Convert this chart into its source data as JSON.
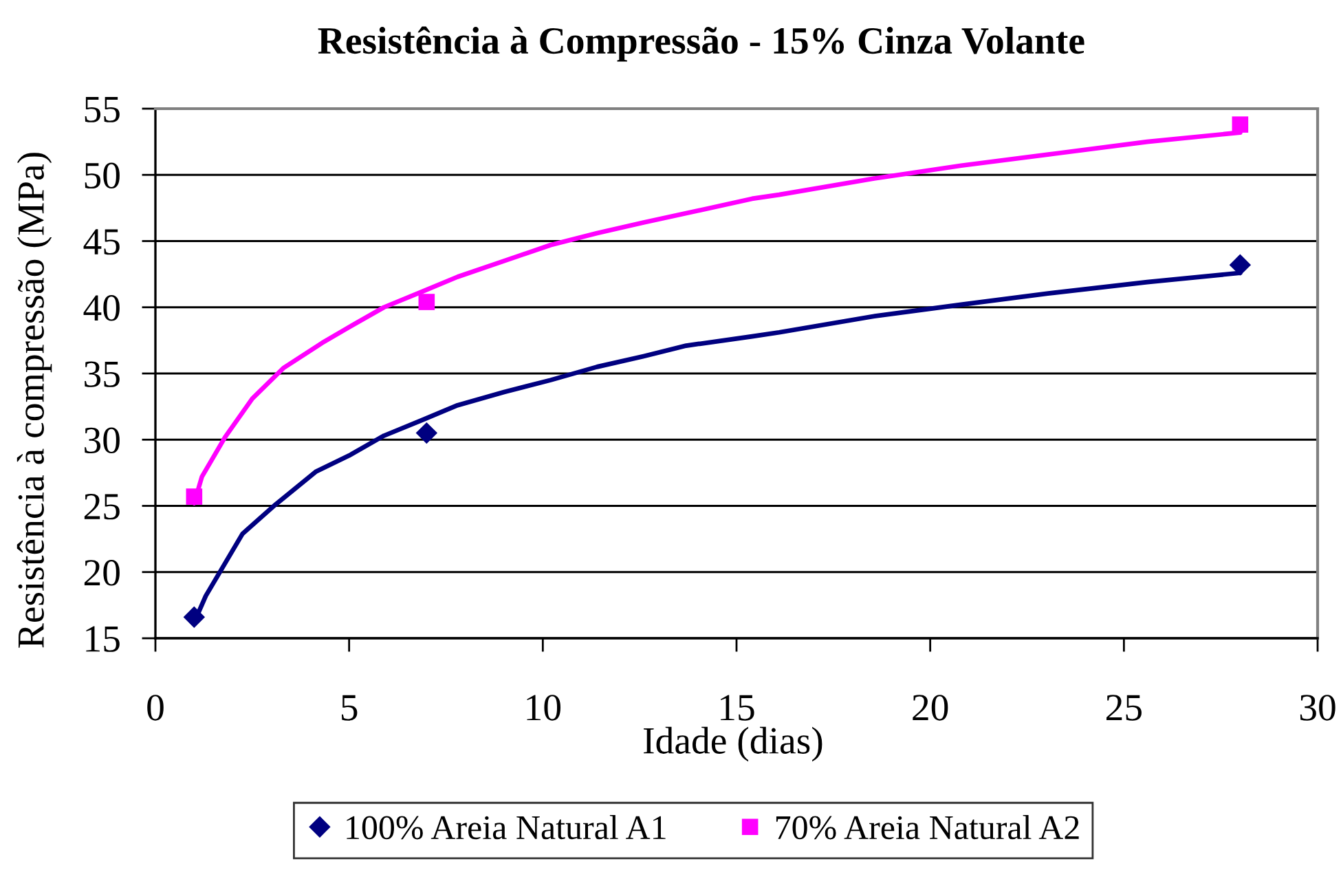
{
  "chart_data": {
    "type": "scatter",
    "title": "Resistência à Compressão - 15% Cinza Volante",
    "xlabel": "Idade (dias)",
    "ylabel": "Resistência à compressão (MPa)",
    "xlim": [
      0,
      30
    ],
    "xticks": [
      0,
      5,
      10,
      15,
      20,
      25,
      30
    ],
    "ylim": [
      15,
      55
    ],
    "yticks": [
      15,
      20,
      25,
      30,
      35,
      40,
      45,
      50,
      55
    ],
    "grid": "y",
    "legend": "bottom",
    "series": [
      {
        "name": "100% Areia Natural A1",
        "color": "#000080",
        "marker": "diamond",
        "x": [
          1,
          7,
          28
        ],
        "values": [
          16.6,
          30.5,
          43.2
        ]
      },
      {
        "name": "70% Areia Natural A2",
        "color": "#ff00ff",
        "marker": "square",
        "x": [
          1,
          7,
          28
        ],
        "values": [
          25.7,
          40.4,
          53.8
        ]
      },
      {
        "type": "line",
        "color": "#000080",
        "marker": "none",
        "line_style": "solid",
        "x": [
          1,
          1.3,
          2.25,
          3.1,
          4.15,
          5.0,
          5.9,
          6.9,
          7.8,
          9.0,
          10.2,
          11.4,
          12.6,
          13.7,
          15.4,
          16.1,
          18.5,
          20.8,
          23.2,
          25.6,
          28
        ],
        "values": [
          16.2,
          18.2,
          22.9,
          25.1,
          27.6,
          28.8,
          30.3,
          31.5,
          32.6,
          33.6,
          34.5,
          35.5,
          36.3,
          37.1,
          37.8,
          38.1,
          39.3,
          40.2,
          41.1,
          41.9,
          42.6
        ]
      },
      {
        "type": "line",
        "color": "#ff00ff",
        "marker": "none",
        "line_style": "solid",
        "x": [
          1,
          1.2,
          1.8,
          2.5,
          3.3,
          4.3,
          5.0,
          5.9,
          6.9,
          7.8,
          9.0,
          10.2,
          11.4,
          12.6,
          13.7,
          15.4,
          16.1,
          18.5,
          20.8,
          23.2,
          25.6,
          28
        ],
        "values": [
          25.2,
          27.2,
          30.2,
          33.1,
          35.4,
          37.3,
          38.5,
          40.0,
          41.2,
          42.3,
          43.5,
          44.7,
          45.6,
          46.4,
          47.1,
          48.2,
          48.5,
          49.7,
          50.7,
          51.6,
          52.5,
          53.2
        ]
      }
    ]
  }
}
